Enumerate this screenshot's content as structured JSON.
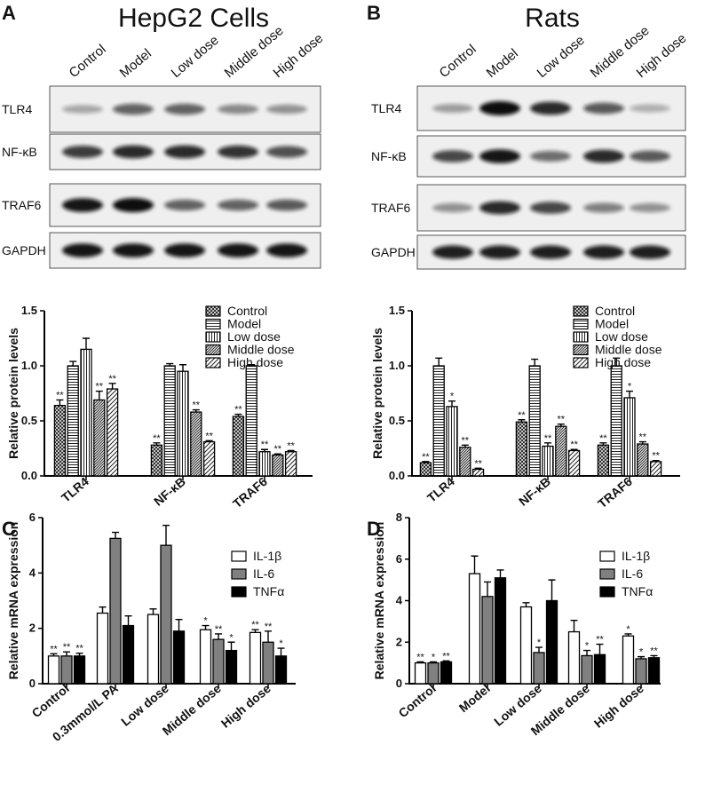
{
  "panel_labels": [
    "A",
    "B",
    "C",
    "D"
  ],
  "blots": [
    {
      "title": "HepG2 Cells",
      "lanes": [
        "Control",
        "Model",
        "Low dose",
        "Middle dose",
        "High dose"
      ],
      "rows": [
        {
          "label": "TLR4",
          "bands": [
            0.2,
            0.55,
            0.55,
            0.35,
            0.3
          ]
        },
        {
          "label": "NF-κB",
          "bands": [
            0.75,
            0.85,
            0.85,
            0.8,
            0.65
          ]
        },
        {
          "label": "TRAF6",
          "bands": [
            0.95,
            1.0,
            0.55,
            0.55,
            0.6
          ]
        },
        {
          "label": "GAPDH",
          "bands": [
            0.95,
            0.95,
            0.95,
            0.95,
            0.95
          ]
        }
      ]
    },
    {
      "title": "Rats",
      "lanes": [
        "Control",
        "Model",
        "Low dose",
        "Middle dose",
        "High dose"
      ],
      "rows": [
        {
          "label": "TLR4",
          "bands": [
            0.25,
            1.0,
            0.85,
            0.6,
            0.15
          ]
        },
        {
          "label": "NF-κB",
          "bands": [
            0.7,
            0.95,
            0.5,
            0.85,
            0.6
          ]
        },
        {
          "label": "TRAF6",
          "bands": [
            0.3,
            0.85,
            0.7,
            0.4,
            0.3
          ]
        },
        {
          "label": "GAPDH",
          "bands": [
            0.9,
            0.9,
            0.9,
            0.9,
            0.9
          ]
        }
      ]
    }
  ],
  "chart_data": [
    {
      "type": "bar",
      "panel": "A",
      "ylabel": "Relative protein levels",
      "ylim": [
        0,
        1.5
      ],
      "yticks": [
        0.0,
        0.5,
        1.0,
        1.5
      ],
      "categories": [
        "TLR4",
        "NF-κB",
        "TRAF6"
      ],
      "legend_position": "top-right",
      "series": [
        {
          "name": "Control",
          "pattern": "cross",
          "values": [
            0.64,
            0.28,
            0.54
          ],
          "errors": [
            0.05,
            0.02,
            0.02
          ],
          "sig": [
            "**",
            "**",
            "**"
          ]
        },
        {
          "name": "Model",
          "pattern": "hlines",
          "values": [
            1.0,
            1.0,
            1.0
          ],
          "errors": [
            0.04,
            0.02,
            0.01
          ],
          "sig": [
            "",
            "",
            ""
          ]
        },
        {
          "name": "Low dose",
          "pattern": "vlines",
          "values": [
            1.15,
            0.95,
            0.22
          ],
          "errors": [
            0.1,
            0.06,
            0.02
          ],
          "sig": [
            "",
            "",
            "**"
          ]
        },
        {
          "name": "Middle dose",
          "pattern": "diag-dense",
          "values": [
            0.69,
            0.58,
            0.19
          ],
          "errors": [
            0.08,
            0.02,
            0.01
          ],
          "sig": [
            "**",
            "**",
            "**"
          ]
        },
        {
          "name": "High dose",
          "pattern": "diag",
          "values": [
            0.79,
            0.31,
            0.22
          ],
          "errors": [
            0.05,
            0.01,
            0.01
          ],
          "sig": [
            "**",
            "**",
            "**"
          ]
        }
      ]
    },
    {
      "type": "bar",
      "panel": "B",
      "ylabel": "Relative protein levels",
      "ylim": [
        0,
        1.5
      ],
      "yticks": [
        0.0,
        0.5,
        1.0,
        1.5
      ],
      "categories": [
        "TLR4",
        "NF-κB",
        "TRAF6"
      ],
      "legend_position": "top-right",
      "series": [
        {
          "name": "Control",
          "pattern": "cross",
          "values": [
            0.12,
            0.49,
            0.28
          ],
          "errors": [
            0.01,
            0.02,
            0.02
          ],
          "sig": [
            "**",
            "**",
            "**"
          ]
        },
        {
          "name": "Model",
          "pattern": "hlines",
          "values": [
            1.0,
            1.0,
            1.0
          ],
          "errors": [
            0.07,
            0.06,
            0.07
          ],
          "sig": [
            "",
            "",
            ""
          ]
        },
        {
          "name": "Low dose",
          "pattern": "vlines",
          "values": [
            0.63,
            0.27,
            0.71
          ],
          "errors": [
            0.05,
            0.03,
            0.06
          ],
          "sig": [
            "*",
            "**",
            "*"
          ]
        },
        {
          "name": "Middle dose",
          "pattern": "diag-dense",
          "values": [
            0.26,
            0.45,
            0.29
          ],
          "errors": [
            0.02,
            0.02,
            0.02
          ],
          "sig": [
            "**",
            "**",
            "**"
          ]
        },
        {
          "name": "High dose",
          "pattern": "diag",
          "values": [
            0.06,
            0.23,
            0.13
          ],
          "errors": [
            0.01,
            0.01,
            0.01
          ],
          "sig": [
            "**",
            "**",
            "**"
          ]
        }
      ]
    },
    {
      "type": "bar",
      "panel": "C",
      "ylabel": "Relative mRNA expression",
      "ylim": [
        0,
        6
      ],
      "yticks": [
        0,
        2,
        4,
        6
      ],
      "categories": [
        "Control",
        "0.3mmol/L PA",
        "Low dose",
        "Middle dose",
        "High dose"
      ],
      "legend_position": "top-right",
      "series": [
        {
          "name": "IL-1β",
          "color": "#ffffff",
          "values": [
            1.0,
            2.55,
            2.5,
            1.95,
            1.85
          ],
          "errors": [
            0.08,
            0.22,
            0.2,
            0.15,
            0.1
          ],
          "sig": [
            "**",
            "",
            "",
            "*",
            "**"
          ]
        },
        {
          "name": "IL-6",
          "color": "#808080",
          "values": [
            1.0,
            5.25,
            5.0,
            1.6,
            1.5
          ],
          "errors": [
            0.15,
            0.22,
            0.72,
            0.2,
            0.4
          ],
          "sig": [
            "**",
            "",
            "",
            "**",
            "**"
          ]
        },
        {
          "name": "TNFα",
          "color": "#000000",
          "values": [
            1.0,
            2.1,
            1.9,
            1.2,
            1.0
          ],
          "errors": [
            0.1,
            0.35,
            0.42,
            0.3,
            0.28
          ],
          "sig": [
            "**",
            "",
            "",
            "*",
            "*"
          ]
        }
      ]
    },
    {
      "type": "bar",
      "panel": "D",
      "ylabel": "Relative mRNA expression",
      "ylim": [
        0,
        8
      ],
      "yticks": [
        0,
        2,
        4,
        6,
        8
      ],
      "categories": [
        "Control",
        "Model",
        "Low dose",
        "Middle dose",
        "High dose"
      ],
      "legend_position": "top-right",
      "series": [
        {
          "name": "IL-1β",
          "color": "#ffffff",
          "values": [
            1.0,
            5.3,
            3.7,
            2.5,
            2.3
          ],
          "errors": [
            0.05,
            0.85,
            0.2,
            0.55,
            0.1
          ],
          "sig": [
            "**",
            "",
            "",
            "",
            "*"
          ]
        },
        {
          "name": "IL-6",
          "color": "#808080",
          "values": [
            1.0,
            4.2,
            1.5,
            1.35,
            1.2
          ],
          "errors": [
            0.05,
            0.7,
            0.25,
            0.25,
            0.1
          ],
          "sig": [
            "*",
            "",
            "*",
            "*",
            "*"
          ]
        },
        {
          "name": "TNFα",
          "color": "#000000",
          "values": [
            1.05,
            5.1,
            4.0,
            1.4,
            1.25
          ],
          "errors": [
            0.05,
            0.38,
            1.0,
            0.5,
            0.1
          ],
          "sig": [
            "**",
            "",
            "",
            "**",
            "**"
          ]
        }
      ]
    }
  ]
}
